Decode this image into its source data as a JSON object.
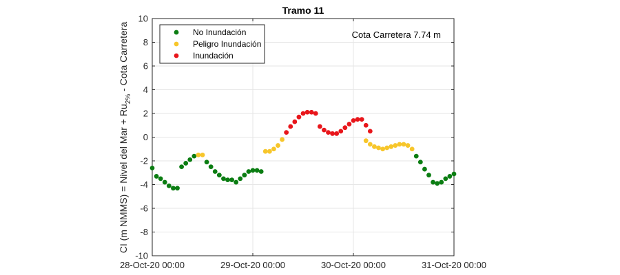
{
  "chart_data": {
    "type": "scatter",
    "title": "Tramo 11",
    "ylabel": {
      "main": "CI (m NMMS) = Nivel del Mar + Ru",
      "subscript": "2%",
      "suffix": " - Cota Carretera"
    },
    "xlabel": "",
    "annotation": "Cota Carretera 7.74 m",
    "ylim": [
      -10,
      10
    ],
    "xlim": [
      "28-Oct-20 00:00",
      "31-Oct-20 00:00"
    ],
    "yticks": [
      -10,
      -8,
      -6,
      -4,
      -2,
      0,
      2,
      4,
      6,
      8,
      10
    ],
    "xticks": [
      "28-Oct-20 00:00",
      "29-Oct-20 00:00",
      "30-Oct-20 00:00",
      "31-Oct-20 00:00"
    ],
    "grid": true,
    "legend_position": "top-left",
    "series": [
      {
        "name": "No Inundación",
        "color": "#0b7d12",
        "points": [
          [
            "28-Oct-20 00:00",
            -2.6
          ],
          [
            "28-Oct-20 01:00",
            -3.3
          ],
          [
            "28-Oct-20 02:00",
            -3.5
          ],
          [
            "28-Oct-20 03:00",
            -3.8
          ],
          [
            "28-Oct-20 04:00",
            -4.1
          ],
          [
            "28-Oct-20 05:00",
            -4.3
          ],
          [
            "28-Oct-20 06:00",
            -4.3
          ],
          [
            "28-Oct-20 07:00",
            -2.5
          ],
          [
            "28-Oct-20 08:00",
            -2.2
          ],
          [
            "28-Oct-20 09:00",
            -1.9
          ],
          [
            "28-Oct-20 10:00",
            -1.6
          ],
          [
            "28-Oct-20 13:00",
            -2.1
          ],
          [
            "28-Oct-20 14:00",
            -2.5
          ],
          [
            "28-Oct-20 15:00",
            -2.9
          ],
          [
            "28-Oct-20 16:00",
            -3.2
          ],
          [
            "28-Oct-20 17:00",
            -3.5
          ],
          [
            "28-Oct-20 18:00",
            -3.6
          ],
          [
            "28-Oct-20 19:00",
            -3.6
          ],
          [
            "28-Oct-20 20:00",
            -3.8
          ],
          [
            "28-Oct-20 21:00",
            -3.5
          ],
          [
            "28-Oct-20 22:00",
            -3.2
          ],
          [
            "28-Oct-20 23:00",
            -2.9
          ],
          [
            "29-Oct-20 00:00",
            -2.8
          ],
          [
            "29-Oct-20 01:00",
            -2.8
          ],
          [
            "29-Oct-20 02:00",
            -2.9
          ],
          [
            "30-Oct-20 15:00",
            -1.6
          ],
          [
            "30-Oct-20 16:00",
            -2.1
          ],
          [
            "30-Oct-20 17:00",
            -2.7
          ],
          [
            "30-Oct-20 18:00",
            -3.2
          ],
          [
            "30-Oct-20 19:00",
            -3.8
          ],
          [
            "30-Oct-20 20:00",
            -3.9
          ],
          [
            "30-Oct-20 21:00",
            -3.8
          ],
          [
            "30-Oct-20 22:00",
            -3.5
          ],
          [
            "30-Oct-20 23:00",
            -3.3
          ],
          [
            "31-Oct-20 00:00",
            -3.1
          ]
        ]
      },
      {
        "name": "Peligro Inundación",
        "color": "#f7c62b",
        "points": [
          [
            "28-Oct-20 11:00",
            -1.5
          ],
          [
            "28-Oct-20 12:00",
            -1.5
          ],
          [
            "29-Oct-20 03:00",
            -1.2
          ],
          [
            "29-Oct-20 04:00",
            -1.2
          ],
          [
            "29-Oct-20 05:00",
            -1.0
          ],
          [
            "29-Oct-20 06:00",
            -0.7
          ],
          [
            "29-Oct-20 07:00",
            -0.2
          ],
          [
            "30-Oct-20 03:00",
            -0.3
          ],
          [
            "30-Oct-20 04:00",
            -0.6
          ],
          [
            "30-Oct-20 05:00",
            -0.8
          ],
          [
            "30-Oct-20 06:00",
            -0.9
          ],
          [
            "30-Oct-20 07:00",
            -1.0
          ],
          [
            "30-Oct-20 08:00",
            -0.9
          ],
          [
            "30-Oct-20 09:00",
            -0.8
          ],
          [
            "30-Oct-20 10:00",
            -0.7
          ],
          [
            "30-Oct-20 11:00",
            -0.6
          ],
          [
            "30-Oct-20 12:00",
            -0.6
          ],
          [
            "30-Oct-20 13:00",
            -0.7
          ],
          [
            "30-Oct-20 14:00",
            -1.0
          ]
        ]
      },
      {
        "name": "Inundación",
        "color": "#e8161b",
        "points": [
          [
            "29-Oct-20 08:00",
            0.4
          ],
          [
            "29-Oct-20 09:00",
            0.9
          ],
          [
            "29-Oct-20 10:00",
            1.3
          ],
          [
            "29-Oct-20 11:00",
            1.7
          ],
          [
            "29-Oct-20 12:00",
            2.0
          ],
          [
            "29-Oct-20 13:00",
            2.1
          ],
          [
            "29-Oct-20 14:00",
            2.1
          ],
          [
            "29-Oct-20 15:00",
            2.0
          ],
          [
            "29-Oct-20 16:00",
            0.9
          ],
          [
            "29-Oct-20 17:00",
            0.6
          ],
          [
            "29-Oct-20 18:00",
            0.4
          ],
          [
            "29-Oct-20 19:00",
            0.3
          ],
          [
            "29-Oct-20 20:00",
            0.3
          ],
          [
            "29-Oct-20 21:00",
            0.5
          ],
          [
            "29-Oct-20 22:00",
            0.8
          ],
          [
            "29-Oct-20 23:00",
            1.1
          ],
          [
            "30-Oct-20 00:00",
            1.4
          ],
          [
            "30-Oct-20 01:00",
            1.5
          ],
          [
            "30-Oct-20 02:00",
            1.5
          ],
          [
            "30-Oct-20 03:00",
            1.0
          ],
          [
            "30-Oct-20 04:00",
            0.5
          ]
        ]
      }
    ]
  }
}
